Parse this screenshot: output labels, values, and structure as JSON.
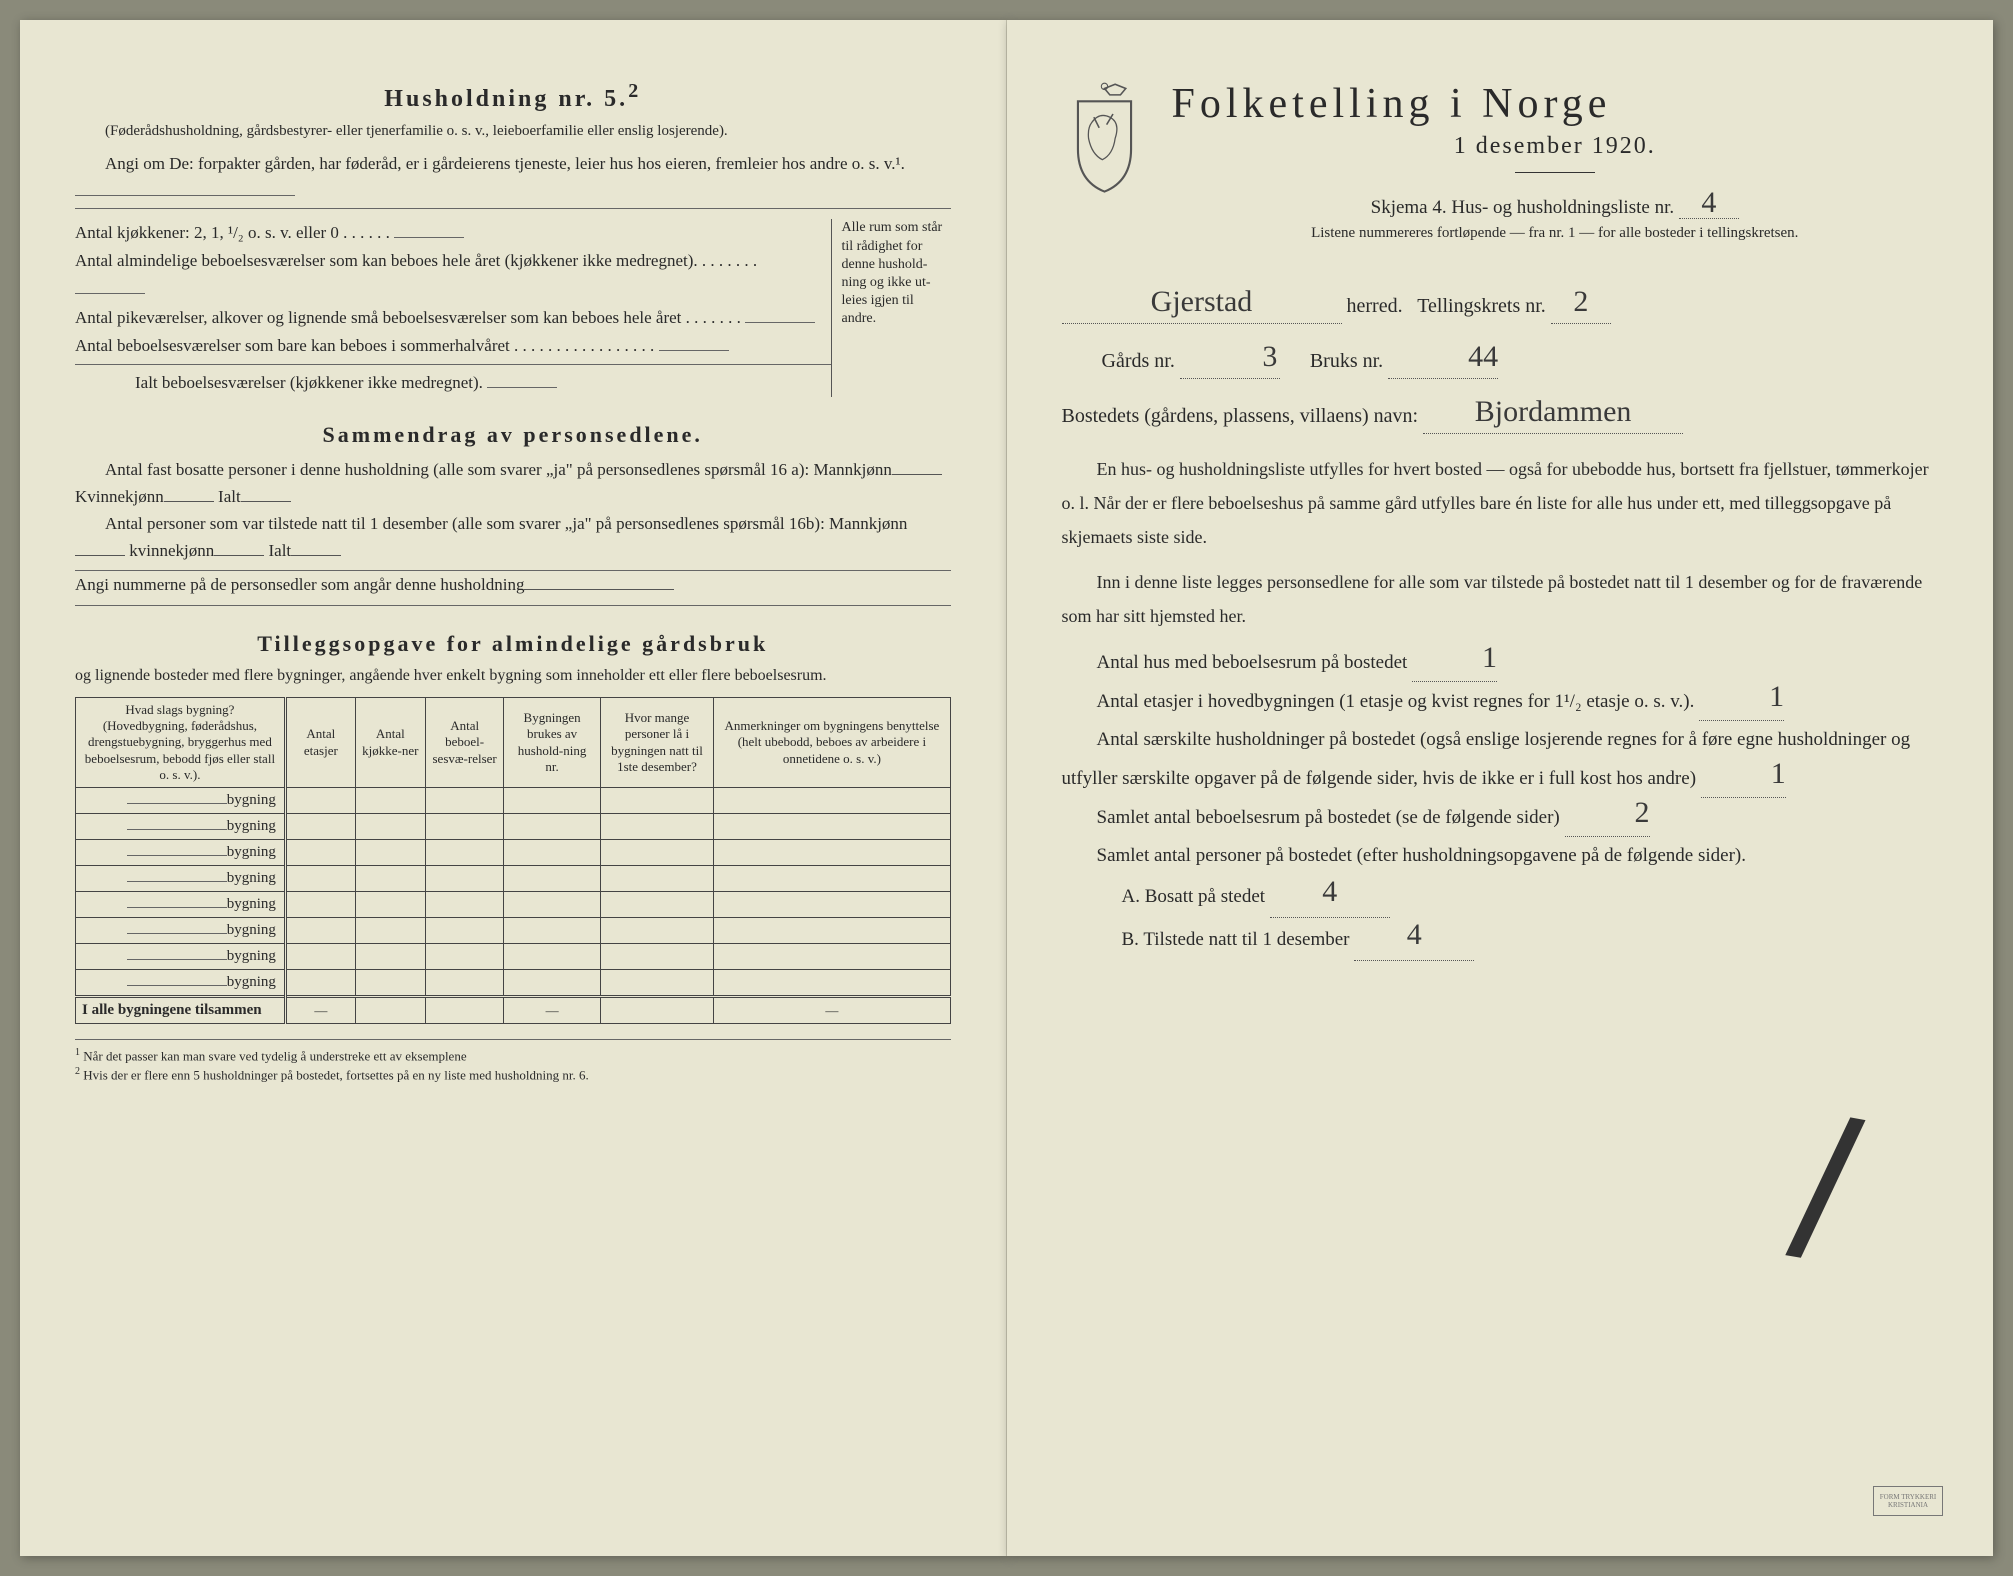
{
  "left": {
    "heading": "Husholdning nr. 5.",
    "heading_sup": "2",
    "sub": "(Føderådshusholdning, gårdsbestyrer- eller tjenerfamilie o. s. v., leieboerfamilie eller enslig losjerende).",
    "angi": "Angi om De:  forpakter gården, har føderåd, er i gårdeierens tjeneste, leier hus hos eieren, fremleier hos andre o. s. v.¹.",
    "kitchen": {
      "l1": "Antal kjøkkener: 2, 1, ¹/₂ o. s. v. eller 0 . . . . . .",
      "l2": "Antal almindelige beboelsesværelser som kan beboes hele året (kjøkkener ikke medregnet). . . . . . . .",
      "l3": "Antal pikeværelser, alkover og lignende små beboelsesværelser som kan beboes hele året . . . . . . .",
      "l4": "Antal beboelsesværelser som bare kan beboes i sommerhalvåret . . . . . . . . . . . . . . . . .",
      "l5": "Ialt beboelsesværelser (kjøkkener ikke medregnet).",
      "side": "Alle rum som står til rådighet for denne hushold-ning og ikke ut-leies igjen til andre."
    },
    "summary_title": "Sammendrag av personsedlene.",
    "sum1a": "Antal fast bosatte personer i denne husholdning (alle som svarer „ja\" på personsedlenes spørsmål 16 a): Mannkjønn",
    "sum1b": "Kvinnekjønn",
    "sum1c": "Ialt",
    "sum2a": "Antal personer som var tilstede natt til 1 desember (alle som svarer „ja\" på personsedlenes spørsmål 16b): Mannkjønn",
    "sum2b": "kvinnekjønn",
    "sum2c": "Ialt",
    "sum3": "Angi nummerne på de personsedler som angår denne husholdning",
    "tillegg_title": "Tilleggsopgave for almindelige gårdsbruk",
    "tillegg_sub": "og lignende bosteder med flere bygninger, angående hver enkelt bygning som inneholder ett eller flere beboelsesrum.",
    "table": {
      "headers": [
        "Hvad slags bygning?\n(Hovedbygning, føderådshus, drengstuebygning, bryggerhus med beboelsesrum, bebodd fjøs eller stall o. s. v.).",
        "Antal etasjer",
        "Antal kjøkke-ner",
        "Antal beboel-sesvæ-relser",
        "Bygningen brukes av hushold-ning nr.",
        "Hvor mange personer lå i bygningen natt til 1ste desember?",
        "Anmerkninger om bygningens benyttelse (helt ubebodd, beboes av arbeidere i onnetidene o. s. v.)"
      ],
      "row_label": "bygning",
      "total_label": "I alle bygningene tilsammen",
      "dash": "—"
    },
    "fn1": "Når det passer kan man svare ved tydelig å understreke ett av eksemplene",
    "fn2": "Hvis der er flere enn 5 husholdninger på bostedet, fortsettes på en ny liste med husholdning nr. 6."
  },
  "right": {
    "title": "Folketelling i Norge",
    "date": "1 desember 1920.",
    "form_line_a": "Skjema 4.   Hus- og husholdningsliste nr.",
    "form_nr": "4",
    "sub_note": "Listene nummereres fortløpende — fra nr. 1 — for alle bosteder i tellingskretsen.",
    "herred_val": "Gjerstad",
    "herred_lbl": "herred.",
    "krets_lbl": "Tellingskrets nr.",
    "krets_val": "2",
    "gards_lbl": "Gårds nr.",
    "gards_val": "3",
    "bruks_lbl": "Bruks nr.",
    "bruks_val": "44",
    "bosted_lbl": "Bostedets (gårdens, plassens, villaens) navn:",
    "bosted_val": "Bjordammen",
    "para1": "En hus- og husholdningsliste utfylles for hvert bosted — også for ubebodde hus, bortsett fra fjellstuer, tømmerkojer o. l. Når der er flere beboelseshus på samme gård utfylles bare én liste for alle hus under ett, med tilleggsopgave på skjemaets siste side.",
    "para2": "Inn i denne liste legges personsedlene for alle som var tilstede på bostedet natt til 1 desember og for de fraværende som har sitt hjemsted her.",
    "q1": "Antal hus med beboelsesrum på bostedet",
    "q1_val": "1",
    "q2a": "Antal etasjer i hovedbygningen (1 etasje og kvist regnes for 1¹/₂ etasje o. s. v.).",
    "q2_val": "1",
    "q3": "Antal særskilte husholdninger på bostedet (også enslige losjerende regnes for å føre egne husholdninger og utfyller særskilte opgaver på de følgende sider, hvis de ikke er i full kost hos andre)",
    "q3_val": "1",
    "q4": "Samlet antal beboelsesrum på bostedet (se de følgende sider)",
    "q4_val": "2",
    "q5": "Samlet antal personer på bostedet (efter husholdningsopgavene på de følgende sider).",
    "qA_lbl": "A.  Bosatt på stedet",
    "qA_val": "4",
    "qB_lbl": "B.  Tilstede natt til 1 desember",
    "qB_val": "4",
    "stamp": "FORM TRYKKERI KRISTIANIA"
  }
}
